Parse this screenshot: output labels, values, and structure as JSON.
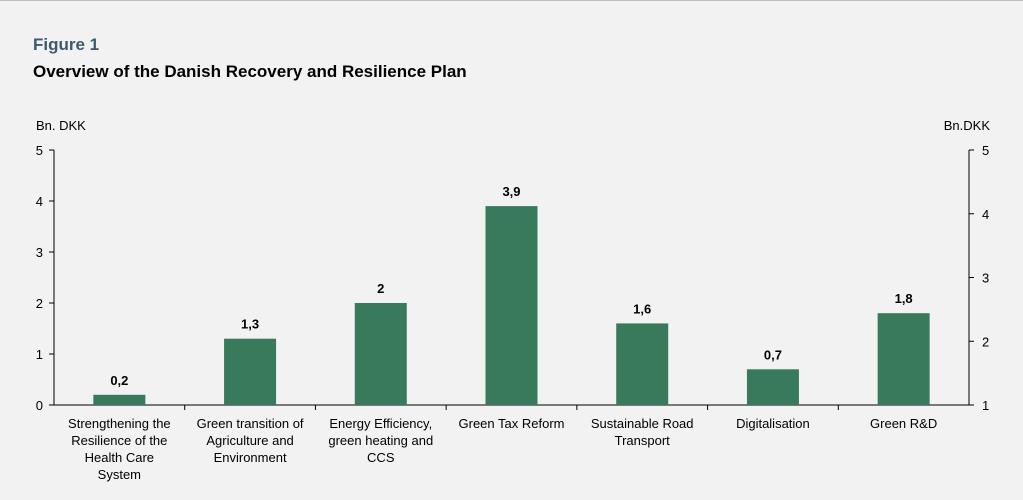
{
  "figure": {
    "label": "Figure 1",
    "title": "Overview of the Danish Recovery and Resilience Plan"
  },
  "chart_data": {
    "type": "bar",
    "title": "Overview of the Danish Recovery and Resilience Plan",
    "ylabel_left": "Bn. DKK",
    "ylabel_right": "Bn.DKK",
    "ylim_left": [
      0,
      5
    ],
    "ylim_right": [
      1,
      5
    ],
    "yticks_left": [
      0,
      1,
      2,
      3,
      4,
      5
    ],
    "yticks_right": [
      1,
      2,
      3,
      4,
      5
    ],
    "categories": [
      [
        "Strengthening the",
        "Resilience of the",
        "Health Care",
        "System"
      ],
      [
        "Green transition of",
        "Agriculture and",
        "Environment"
      ],
      [
        "Energy Efficiency,",
        "green heating and",
        "CCS"
      ],
      [
        "Green Tax Reform"
      ],
      [
        "Sustainable Road",
        "Transport"
      ],
      [
        "Digitalisation"
      ],
      [
        "Green R&D"
      ]
    ],
    "values": [
      0.2,
      1.3,
      2,
      3.9,
      1.6,
      0.7,
      1.8
    ],
    "data_labels": [
      "0,2",
      "1,3",
      "2",
      "3,9",
      "1,6",
      "0,7",
      "1,8"
    ],
    "bar_color": "#3a7a5c",
    "grid": false,
    "legend": "none"
  }
}
